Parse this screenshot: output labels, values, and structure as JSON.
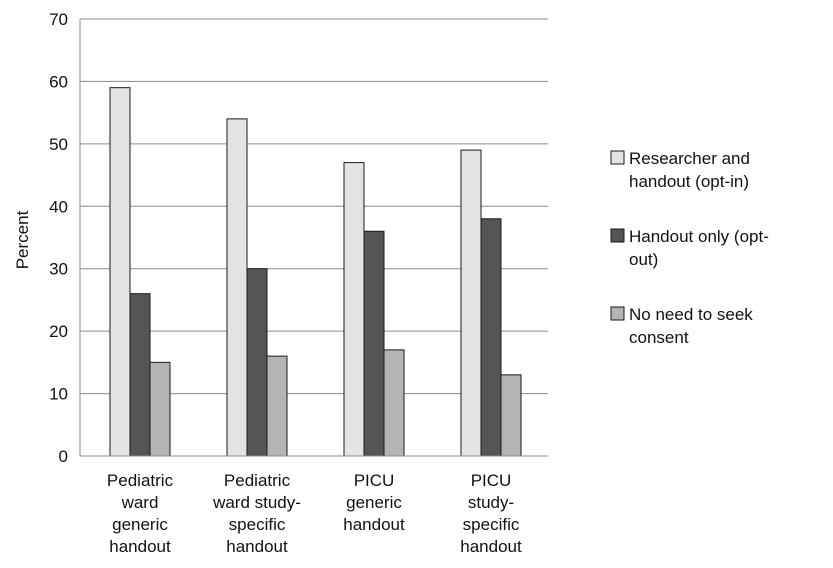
{
  "chart_data": {
    "type": "bar",
    "title": "",
    "xlabel": "",
    "ylabel": "Percent",
    "ylim": [
      0,
      70
    ],
    "ytick_step": 10,
    "grid": true,
    "legend_position": "right",
    "categories": [
      [
        "Pediatric",
        "ward",
        "generic",
        "handout"
      ],
      [
        "Pediatric",
        "ward study-",
        "specific",
        "handout"
      ],
      [
        "PICU",
        "generic",
        "handout"
      ],
      [
        "PICU",
        "study-",
        "specific",
        "handout"
      ]
    ],
    "series": [
      {
        "name": "Researcher and handout (opt-in)",
        "legend_lines": [
          "Researcher and",
          "handout (opt-in)"
        ],
        "color": "#e3e3e3",
        "values": [
          59,
          54,
          47,
          49
        ]
      },
      {
        "name": "Handout only (opt-out)",
        "legend_lines": [
          "Handout only (opt-",
          "out)"
        ],
        "color": "#555555",
        "values": [
          26,
          30,
          36,
          38
        ]
      },
      {
        "name": "No need to seek consent",
        "legend_lines": [
          "No need to seek",
          "consent"
        ],
        "color": "#b4b4b4",
        "values": [
          15,
          16,
          17,
          13
        ]
      }
    ]
  }
}
